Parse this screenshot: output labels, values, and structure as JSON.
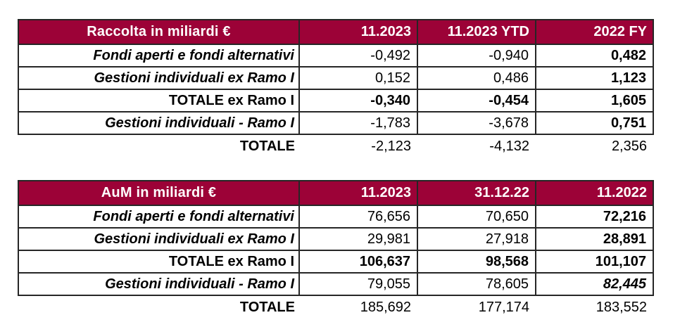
{
  "colors": {
    "header_bg": "#9C0237",
    "header_text": "#ffffff",
    "grid_border": "#262626",
    "body_text": "#000000"
  },
  "tables": [
    {
      "title": "Raccolta in miliardi €",
      "columns": [
        "11.2023",
        "11.2023 YTD",
        "2022 FY"
      ],
      "rows": [
        {
          "label": "Fondi aperti e fondi alternativi",
          "values": [
            "-0,492",
            "-0,940",
            "0,482"
          ]
        },
        {
          "label": "Gestioni individuali ex Ramo I",
          "values": [
            "0,152",
            "0,486",
            "1,123"
          ]
        },
        {
          "label": "TOTALE ex Ramo I",
          "values": [
            "-0,340",
            "-0,454",
            "1,605"
          ]
        },
        {
          "label": "Gestioni individuali - Ramo I",
          "values": [
            "-1,783",
            "-3,678",
            "0,751"
          ]
        }
      ],
      "total_row": {
        "label": "TOTALE",
        "values": [
          "-2,123",
          "-4,132",
          "2,356"
        ]
      }
    },
    {
      "title": "AuM in miliardi €",
      "columns": [
        "11.2023",
        "31.12.22",
        "11.2022"
      ],
      "rows": [
        {
          "label": "Fondi aperti e fondi alternativi",
          "values": [
            "76,656",
            "70,650",
            "72,216"
          ]
        },
        {
          "label": "Gestioni individuali ex Ramo I",
          "values": [
            "29,981",
            "27,918",
            "28,891"
          ]
        },
        {
          "label": "TOTALE ex Ramo I",
          "values": [
            "106,637",
            "98,568",
            "101,107"
          ]
        },
        {
          "label": "Gestioni individuali - Ramo I",
          "values": [
            "79,055",
            "78,605",
            "82,445"
          ]
        }
      ],
      "total_row": {
        "label": "TOTALE",
        "values": [
          "185,692",
          "177,174",
          "183,552"
        ]
      }
    }
  ]
}
